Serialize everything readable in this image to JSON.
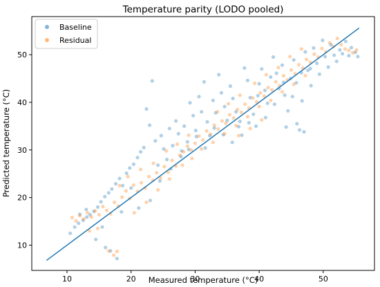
{
  "chart_data": {
    "type": "scatter",
    "title": "Temperature parity (LODO pooled)",
    "xlabel": "Measured temperature (°C)",
    "ylabel": "Predicted temperature (°C)",
    "xlim": [
      4.5,
      58
    ],
    "ylim": [
      4.7,
      58
    ],
    "xticks": [
      10,
      20,
      30,
      40,
      50
    ],
    "yticks": [
      10,
      20,
      30,
      40,
      50
    ],
    "grid": false,
    "legend_position": "top-left",
    "series": [
      {
        "name": "Baseline",
        "color": "#1f77b4",
        "alpha": 0.35,
        "points": [
          [
            10.5,
            12.5
          ],
          [
            11.2,
            13.8
          ],
          [
            11.8,
            14.6
          ],
          [
            12.5,
            15.2
          ],
          [
            13.1,
            15.9
          ],
          [
            13.6,
            16.4
          ],
          [
            14.2,
            17.1
          ],
          [
            14.8,
            18.0
          ],
          [
            15.3,
            19.1
          ],
          [
            15.9,
            20.2
          ],
          [
            16.5,
            21.0
          ],
          [
            17.0,
            21.8
          ],
          [
            17.6,
            22.9
          ],
          [
            18.2,
            24.0
          ],
          [
            18.7,
            22.5
          ],
          [
            19.3,
            25.1
          ],
          [
            19.8,
            26.2
          ],
          [
            20.4,
            27.0
          ],
          [
            21.0,
            28.4
          ],
          [
            21.5,
            29.6
          ],
          [
            22.0,
            30.5
          ],
          [
            22.4,
            38.6
          ],
          [
            22.9,
            35.2
          ],
          [
            23.3,
            44.5
          ],
          [
            23.8,
            31.9
          ],
          [
            24.2,
            26.8
          ],
          [
            24.7,
            33.0
          ],
          [
            25.1,
            30.2
          ],
          [
            25.6,
            28.0
          ],
          [
            26.0,
            34.5
          ],
          [
            26.5,
            30.9
          ],
          [
            27.0,
            36.1
          ],
          [
            27.4,
            33.4
          ],
          [
            27.9,
            29.8
          ],
          [
            28.3,
            35.0
          ],
          [
            28.8,
            31.7
          ],
          [
            29.2,
            39.9
          ],
          [
            29.7,
            37.2
          ],
          [
            30.1,
            34.1
          ],
          [
            30.6,
            41.2
          ],
          [
            31.0,
            38.0
          ],
          [
            31.4,
            44.3
          ],
          [
            31.9,
            35.9
          ],
          [
            32.3,
            33.0
          ],
          [
            32.8,
            40.4
          ],
          [
            33.2,
            37.8
          ],
          [
            33.7,
            45.8
          ],
          [
            34.1,
            42.0
          ],
          [
            34.6,
            39.1
          ],
          [
            35.0,
            36.2
          ],
          [
            35.5,
            43.4
          ],
          [
            35.9,
            40.8
          ],
          [
            36.4,
            38.0
          ],
          [
            36.8,
            34.9
          ],
          [
            37.3,
            33.1
          ],
          [
            37.7,
            47.2
          ],
          [
            38.2,
            44.6
          ],
          [
            38.6,
            41.0
          ],
          [
            39.1,
            37.5
          ],
          [
            39.5,
            35.0
          ],
          [
            40.0,
            43.9
          ],
          [
            40.4,
            47.0
          ],
          [
            40.9,
            42.5
          ],
          [
            41.3,
            39.8
          ],
          [
            41.8,
            45.3
          ],
          [
            42.2,
            49.5
          ],
          [
            42.7,
            46.1
          ],
          [
            43.1,
            42.9
          ],
          [
            43.6,
            47.8
          ],
          [
            44.0,
            41.5
          ],
          [
            44.5,
            38.2
          ],
          [
            44.9,
            45.0
          ],
          [
            45.4,
            48.9
          ],
          [
            45.8,
            44.1
          ],
          [
            46.3,
            34.2
          ],
          [
            46.7,
            40.3
          ],
          [
            47.2,
            50.6
          ],
          [
            47.6,
            46.7
          ],
          [
            48.1,
            43.5
          ],
          [
            48.5,
            51.4
          ],
          [
            49.0,
            48.2
          ],
          [
            49.4,
            45.9
          ],
          [
            49.9,
            53.0
          ],
          [
            50.3,
            49.6
          ],
          [
            50.8,
            47.4
          ],
          [
            51.2,
            52.1
          ],
          [
            51.7,
            49.9
          ],
          [
            52.1,
            48.6
          ],
          [
            52.6,
            51.0
          ],
          [
            53.0,
            50.2
          ],
          [
            53.5,
            52.8
          ],
          [
            54.0,
            49.8
          ],
          [
            54.4,
            51.5
          ],
          [
            55.0,
            50.5
          ],
          [
            55.4,
            49.6
          ],
          [
            17.8,
            7.2
          ],
          [
            16.8,
            8.8
          ],
          [
            16.0,
            9.5
          ],
          [
            14.5,
            11.2
          ],
          [
            12.0,
            16.5
          ],
          [
            13.0,
            17.5
          ],
          [
            15.5,
            13.8
          ],
          [
            18.5,
            17.0
          ],
          [
            20.0,
            22.0
          ],
          [
            21.2,
            17.8
          ],
          [
            23.0,
            19.4
          ],
          [
            24.5,
            23.5
          ],
          [
            26.2,
            26.0
          ],
          [
            27.8,
            28.6
          ],
          [
            29.0,
            30.1
          ],
          [
            30.2,
            32.8
          ],
          [
            31.6,
            30.4
          ],
          [
            33.0,
            34.6
          ],
          [
            34.4,
            33.2
          ],
          [
            35.8,
            31.6
          ],
          [
            37.0,
            36.0
          ],
          [
            38.4,
            35.7
          ],
          [
            39.8,
            41.4
          ],
          [
            41.0,
            36.8
          ],
          [
            42.4,
            39.6
          ],
          [
            43.8,
            44.2
          ],
          [
            45.2,
            41.2
          ],
          [
            46.6,
            46.2
          ],
          [
            48.0,
            47.1
          ],
          [
            47.0,
            33.8
          ],
          [
            45.9,
            35.5
          ],
          [
            44.2,
            34.8
          ]
        ]
      },
      {
        "name": "Residual",
        "color": "#ff7f0e",
        "alpha": 0.35,
        "points": [
          [
            10.8,
            15.8
          ],
          [
            11.4,
            15.1
          ],
          [
            12.0,
            16.2
          ],
          [
            12.6,
            15.5
          ],
          [
            13.2,
            16.8
          ],
          [
            13.8,
            15.9
          ],
          [
            14.4,
            17.2
          ],
          [
            15.0,
            16.4
          ],
          [
            15.6,
            18.1
          ],
          [
            16.2,
            17.3
          ],
          [
            16.8,
            16.6
          ],
          [
            17.4,
            19.0
          ],
          [
            18.0,
            18.2
          ],
          [
            18.6,
            20.1
          ],
          [
            19.2,
            21.4
          ],
          [
            19.8,
            19.8
          ],
          [
            20.4,
            22.6
          ],
          [
            21.0,
            21.3
          ],
          [
            21.6,
            23.1
          ],
          [
            22.2,
            22.0
          ],
          [
            22.8,
            24.4
          ],
          [
            23.4,
            23.6
          ],
          [
            24.0,
            25.2
          ],
          [
            24.6,
            24.1
          ],
          [
            25.2,
            26.5
          ],
          [
            25.8,
            25.3
          ],
          [
            26.4,
            27.8
          ],
          [
            27.0,
            26.6
          ],
          [
            27.6,
            28.9
          ],
          [
            28.2,
            29.6
          ],
          [
            28.8,
            30.8
          ],
          [
            29.4,
            30.0
          ],
          [
            30.0,
            31.4
          ],
          [
            30.6,
            32.9
          ],
          [
            31.2,
            32.1
          ],
          [
            31.8,
            34.0
          ],
          [
            32.4,
            33.3
          ],
          [
            33.0,
            35.2
          ],
          [
            33.6,
            34.4
          ],
          [
            34.2,
            36.1
          ],
          [
            34.8,
            35.6
          ],
          [
            35.4,
            37.4
          ],
          [
            36.0,
            36.7
          ],
          [
            36.6,
            38.5
          ],
          [
            37.2,
            37.9
          ],
          [
            37.8,
            39.6
          ],
          [
            38.4,
            38.8
          ],
          [
            39.0,
            40.9
          ],
          [
            39.6,
            40.1
          ],
          [
            40.2,
            42.0
          ],
          [
            40.8,
            41.3
          ],
          [
            41.4,
            43.1
          ],
          [
            42.0,
            42.6
          ],
          [
            42.6,
            44.3
          ],
          [
            43.2,
            43.5
          ],
          [
            43.8,
            45.6
          ],
          [
            44.4,
            44.7
          ],
          [
            45.0,
            46.8
          ],
          [
            45.6,
            46.0
          ],
          [
            46.2,
            47.9
          ],
          [
            46.8,
            47.2
          ],
          [
            47.4,
            49.0
          ],
          [
            48.0,
            48.4
          ],
          [
            48.6,
            50.1
          ],
          [
            49.2,
            49.5
          ],
          [
            49.8,
            51.3
          ],
          [
            50.4,
            50.6
          ],
          [
            51.0,
            52.5
          ],
          [
            51.6,
            51.7
          ],
          [
            52.2,
            53.4
          ],
          [
            52.8,
            52.1
          ],
          [
            53.4,
            51.2
          ],
          [
            54.0,
            50.9
          ],
          [
            54.6,
            50.4
          ],
          [
            55.2,
            51.0
          ],
          [
            16.5,
            8.8
          ],
          [
            17.3,
            7.9
          ],
          [
            17.8,
            8.7
          ],
          [
            13.5,
            13.0
          ],
          [
            14.8,
            13.5
          ],
          [
            20.5,
            16.8
          ],
          [
            22.4,
            19.0
          ],
          [
            24.2,
            21.6
          ],
          [
            26.0,
            23.9
          ],
          [
            28.0,
            26.8
          ],
          [
            29.5,
            28.2
          ],
          [
            31.0,
            30.2
          ],
          [
            32.8,
            31.6
          ],
          [
            34.6,
            33.4
          ],
          [
            36.4,
            35.1
          ],
          [
            38.2,
            37.0
          ],
          [
            40.0,
            39.1
          ],
          [
            41.8,
            40.4
          ],
          [
            43.6,
            42.2
          ],
          [
            45.4,
            43.8
          ],
          [
            47.2,
            45.6
          ],
          [
            25.5,
            29.8
          ],
          [
            23.5,
            27.2
          ],
          [
            21.5,
            25.9
          ],
          [
            19.5,
            24.4
          ],
          [
            18.2,
            22.5
          ],
          [
            27.2,
            31.2
          ],
          [
            29.0,
            33.1
          ],
          [
            33.5,
            38.0
          ],
          [
            35.2,
            39.7
          ],
          [
            37.0,
            41.5
          ],
          [
            39.3,
            44.0
          ],
          [
            41.1,
            45.8
          ],
          [
            43.0,
            47.3
          ],
          [
            44.8,
            49.6
          ],
          [
            46.6,
            51.2
          ],
          [
            36.8,
            33.0
          ],
          [
            38.6,
            34.5
          ],
          [
            40.4,
            36.3
          ]
        ]
      }
    ],
    "line": {
      "color": "#1f77b4",
      "points": [
        [
          6.8,
          6.8
        ],
        [
          55.6,
          55.6
        ]
      ]
    }
  }
}
